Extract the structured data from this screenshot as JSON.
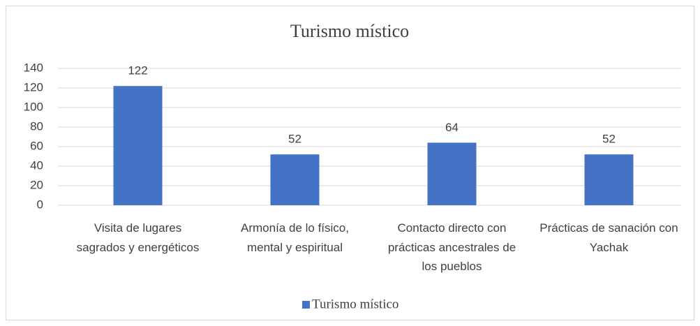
{
  "chart_data": {
    "type": "bar",
    "title": "Turismo místico",
    "categories": [
      "Visita de lugares sagrados y energéticos",
      "Armonía de lo físico, mental y espiritual",
      "Contacto directo con prácticas ancestrales de los pueblos",
      "Prácticas de sanación con Yachak"
    ],
    "series": [
      {
        "name": "Turismo místico",
        "color": "#4472c4",
        "values": [
          122,
          52,
          64,
          52
        ]
      }
    ],
    "ylim": [
      0,
      140
    ],
    "yticks": [
      0,
      20,
      40,
      60,
      80,
      100,
      120,
      140
    ],
    "grid": true,
    "legend": "bottom"
  }
}
